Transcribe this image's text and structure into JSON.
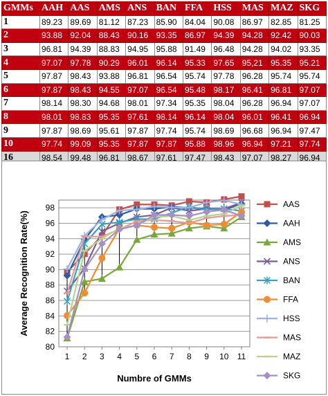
{
  "table": {
    "columns": [
      "GMMs",
      "AAH",
      "AAS",
      "AMS",
      "ANS",
      "BAN",
      "FFA",
      "HSS",
      "MAS",
      "MAZ",
      "SKG"
    ],
    "rows": [
      {
        "label": "1",
        "style": "white",
        "values": [
          "89.23",
          "89.69",
          "81.12",
          "87.23",
          "85.90",
          "84.04",
          "90.08",
          "86.97",
          "82.85",
          "81.25"
        ]
      },
      {
        "label": "2",
        "style": "red",
        "values": [
          "93.88",
          "92.04",
          "88.43",
          "90.16",
          "93.35",
          "86.97",
          "94.39",
          "94.28",
          "92.42",
          "90.03"
        ]
      },
      {
        "label": "3",
        "style": "white",
        "values": [
          "96.81",
          "94.39",
          "88.83",
          "94.95",
          "95.88",
          "91.49",
          "96.48",
          "94.28",
          "94.02",
          "93.35"
        ]
      },
      {
        "label": "4",
        "style": "red",
        "values": [
          "97.07",
          "97.78",
          "90.29",
          "96.01",
          "96.14",
          "95.33",
          "97.65",
          "95,21",
          "95.35",
          "95.21"
        ]
      },
      {
        "label": "5",
        "style": "white",
        "values": [
          "97.87",
          "98.43",
          "93.88",
          "96.81",
          "96.54",
          "95.74",
          "97.78",
          "96.28",
          "95.74",
          "95.74"
        ]
      },
      {
        "label": "6",
        "style": "red",
        "values": [
          "97.87",
          "98.43",
          "94.55",
          "97.07",
          "96.54",
          "95.48",
          "98.17",
          "96.41",
          "96.81",
          "97.07"
        ]
      },
      {
        "label": "7",
        "style": "white",
        "values": [
          "98.14",
          "98.30",
          "94.68",
          "98.01",
          "97.34",
          "95.35",
          "98.04",
          "96.28",
          "96.94",
          "97.07"
        ]
      },
      {
        "label": "8",
        "style": "red",
        "values": [
          "98.01",
          "98.83",
          "95.35",
          "97.61",
          "98.14",
          "96.14",
          "98.04",
          "96.01",
          "96.41",
          "96.94"
        ]
      },
      {
        "label": "9",
        "style": "white",
        "values": [
          "97.87",
          "98.69",
          "95.61",
          "97.87",
          "97.74",
          "95.74",
          "98.69",
          "96.68",
          "96.94",
          "97.47"
        ]
      },
      {
        "label": "10",
        "style": "red",
        "values": [
          "97.74",
          "99.09",
          "95.35",
          "97.87",
          "97.87",
          "95.88",
          "98.96",
          "96.94",
          "97.21",
          "97.74"
        ]
      },
      {
        "label": "16",
        "style": "gray",
        "values": [
          "98.54",
          "99.48",
          "96.81",
          "98.67",
          "97.61",
          "97.47",
          "98.43",
          "97.07",
          "98.27",
          "96.94"
        ]
      }
    ]
  },
  "chart_data": {
    "type": "line",
    "xlabel": "Numbre of GMMs",
    "ylabel": "Average Recognition Rate(%)",
    "x": [
      1,
      2,
      3,
      4,
      5,
      6,
      7,
      8,
      9,
      10,
      11
    ],
    "xticks": [
      "1",
      "2",
      "3",
      "4",
      "5",
      "6",
      "7",
      "8",
      "9",
      "10",
      "11"
    ],
    "yticks": [
      "80",
      "82",
      "84",
      "86",
      "88",
      "90",
      "92",
      "94",
      "96",
      "98"
    ],
    "ylim": [
      80,
      99
    ],
    "grid": true,
    "legend_position": "right",
    "series": [
      {
        "name": "AAS",
        "color": "#c0504d",
        "marker": "square",
        "values": [
          89.69,
          92.04,
          94.39,
          97.78,
          98.43,
          98.43,
          98.3,
          98.83,
          98.69,
          99.09,
          99.48
        ]
      },
      {
        "name": "AAH",
        "color": "#2e5aa6",
        "marker": "diamond",
        "values": [
          89.23,
          93.88,
          96.81,
          97.07,
          97.87,
          97.87,
          98.14,
          98.01,
          97.87,
          97.74,
          98.54
        ]
      },
      {
        "name": "AMS",
        "color": "#77a83a",
        "marker": "triangle",
        "values": [
          81.12,
          88.43,
          88.83,
          90.29,
          93.88,
          94.55,
          94.68,
          95.35,
          95.61,
          95.35,
          96.81
        ]
      },
      {
        "name": "ANS",
        "color": "#7a5c9a",
        "marker": "x",
        "values": [
          87.23,
          90.16,
          94.95,
          96.01,
          96.81,
          97.07,
          98.01,
          97.61,
          97.87,
          97.87,
          98.67
        ]
      },
      {
        "name": "BAN",
        "color": "#3aa0c0",
        "marker": "star",
        "values": [
          85.9,
          93.35,
          95.88,
          96.14,
          96.54,
          96.54,
          97.34,
          98.14,
          97.74,
          97.87,
          97.61
        ]
      },
      {
        "name": "FFA",
        "color": "#f08c33",
        "marker": "circle",
        "values": [
          84.04,
          86.97,
          91.49,
          95.33,
          95.74,
          95.48,
          95.35,
          96.14,
          95.74,
          95.88,
          97.47
        ]
      },
      {
        "name": "HSS",
        "color": "#9cb2e0",
        "marker": "plus",
        "values": [
          90.08,
          94.39,
          96.48,
          97.65,
          97.78,
          98.17,
          98.04,
          98.04,
          98.69,
          98.96,
          98.43
        ]
      },
      {
        "name": "MAS",
        "color": "#e39b9a",
        "marker": "dash",
        "values": [
          86.97,
          94.28,
          94.28,
          95.21,
          96.28,
          96.41,
          96.28,
          96.01,
          96.68,
          96.94,
          97.07
        ]
      },
      {
        "name": "MAZ",
        "color": "#b9d38e",
        "marker": "dash",
        "values": [
          82.85,
          92.42,
          94.02,
          95.35,
          95.74,
          96.81,
          96.94,
          96.41,
          96.94,
          97.21,
          98.27
        ]
      },
      {
        "name": "SKG",
        "color": "#a68fc4",
        "marker": "diamond",
        "values": [
          81.25,
          90.03,
          93.35,
          95.21,
          95.74,
          97.07,
          97.07,
          96.94,
          97.47,
          97.74,
          96.94
        ]
      }
    ]
  }
}
